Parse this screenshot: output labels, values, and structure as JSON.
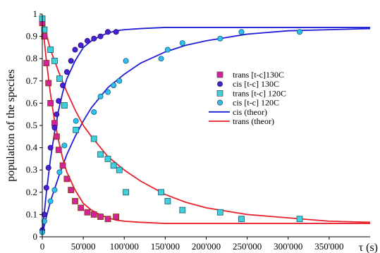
{
  "chart_data": {
    "type": "scatter",
    "title": "",
    "xlabel": "τ (s)",
    "ylabel": "population of the species",
    "xlim": [
      0,
      400000
    ],
    "ylim": [
      0,
      1
    ],
    "x_tick_labels": [
      "0",
      "50'000",
      "100'000",
      "150'000",
      "200'000",
      "250'000",
      "300'000",
      "350'000"
    ],
    "x_tick_values": [
      0,
      50000,
      100000,
      150000,
      200000,
      250000,
      300000,
      350000
    ],
    "y_tick_labels": [
      "0",
      "0.1",
      "0.2",
      "0.3",
      "0.4",
      "0.5",
      "0.6",
      "0.7",
      "0.8",
      "0.9",
      "1"
    ],
    "y_tick_values": [
      0,
      0.1,
      0.2,
      0.3,
      0.4,
      0.5,
      0.6,
      0.7,
      0.8,
      0.9,
      1
    ],
    "grid": false,
    "legend_position": "center-right",
    "series": [
      {
        "name": "trans [t-c]130C",
        "kind": "marker",
        "marker": "square",
        "fill": "#d6229a",
        "stroke": "#7a3a10",
        "x": [
          0,
          2500,
          5000,
          7500,
          10000,
          15000,
          17500,
          20000,
          25000,
          30000,
          35000,
          40000,
          47000,
          55000,
          63000,
          71000,
          80000,
          90000
        ],
        "y": [
          0.96,
          0.9,
          0.78,
          0.69,
          0.6,
          0.51,
          0.45,
          0.39,
          0.32,
          0.26,
          0.21,
          0.16,
          0.13,
          0.11,
          0.1,
          0.09,
          0.08,
          0.09
        ]
      },
      {
        "name": "cis [t-c] 130C",
        "kind": "marker",
        "marker": "circle",
        "fill": "#4b1fd6",
        "stroke": "#1b0a7a",
        "x": [
          0,
          2500,
          5000,
          7500,
          10000,
          15000,
          17500,
          20000,
          25000,
          30000,
          35000,
          40000,
          47000,
          55000,
          63000,
          71000,
          80000,
          90000
        ],
        "y": [
          0.03,
          0.1,
          0.22,
          0.31,
          0.4,
          0.49,
          0.55,
          0.61,
          0.68,
          0.74,
          0.79,
          0.84,
          0.86,
          0.88,
          0.89,
          0.9,
          0.92,
          0.92
        ]
      },
      {
        "name": "trans [t-c] 120C",
        "kind": "marker",
        "marker": "square",
        "fill": "#3fd0dc",
        "stroke": "#1a5a6a",
        "x": [
          0,
          2500,
          10000,
          15000,
          21000,
          27000,
          41000,
          63000,
          71000,
          80000,
          87000,
          94000,
          102000,
          145000,
          153000,
          171000,
          217000,
          243000,
          314000
        ],
        "y": [
          0.98,
          0.93,
          0.84,
          0.79,
          0.71,
          0.59,
          0.48,
          0.44,
          0.37,
          0.35,
          0.32,
          0.3,
          0.2,
          0.2,
          0.16,
          0.12,
          0.11,
          0.08,
          0.08
        ]
      },
      {
        "name": "cis [t-c] 120C",
        "kind": "marker",
        "marker": "circle",
        "fill": "#2fc0f0",
        "stroke": "#10607a",
        "x": [
          0,
          2500,
          10000,
          15000,
          21000,
          27000,
          41000,
          63000,
          71000,
          80000,
          87000,
          94000,
          102000,
          145000,
          153000,
          171000,
          217000,
          243000,
          314000
        ],
        "y": [
          0.02,
          0.07,
          0.16,
          0.21,
          0.29,
          0.41,
          0.52,
          0.56,
          0.63,
          0.65,
          0.68,
          0.7,
          0.79,
          0.8,
          0.84,
          0.87,
          0.89,
          0.92,
          0.92
        ]
      },
      {
        "name": "cis (theor)",
        "kind": "line",
        "color": "#1f1fd6",
        "x": [
          0,
          2500,
          5000,
          10000,
          15000,
          20000,
          25000,
          30000,
          40000,
          50000,
          60000,
          70000,
          80000,
          90000,
          100000,
          120000,
          150000,
          200000,
          300000,
          400000
        ],
        "y": [
          0.02,
          0.11,
          0.2,
          0.35,
          0.47,
          0.57,
          0.65,
          0.71,
          0.79,
          0.85,
          0.88,
          0.9,
          0.915,
          0.925,
          0.93,
          0.935,
          0.94,
          0.94,
          0.94,
          0.94
        ]
      },
      {
        "name": "cis (theor)",
        "kind": "line",
        "color": "#1f1fd6",
        "x": [
          0,
          5000,
          10000,
          20000,
          30000,
          40000,
          50000,
          60000,
          80000,
          100000,
          120000,
          150000,
          175000,
          200000,
          250000,
          300000,
          350000,
          400000
        ],
        "y": [
          0.01,
          0.09,
          0.16,
          0.27,
          0.37,
          0.45,
          0.52,
          0.58,
          0.67,
          0.73,
          0.78,
          0.83,
          0.86,
          0.88,
          0.91,
          0.925,
          0.93,
          0.935
        ]
      },
      {
        "name": "trans (theor)",
        "kind": "line",
        "color": "#e8202a",
        "x": [
          0,
          2500,
          5000,
          10000,
          15000,
          20000,
          25000,
          30000,
          40000,
          50000,
          60000,
          70000,
          80000,
          90000,
          100000,
          120000,
          150000,
          200000,
          300000,
          400000
        ],
        "y": [
          0.98,
          0.88,
          0.79,
          0.64,
          0.52,
          0.43,
          0.35,
          0.29,
          0.21,
          0.15,
          0.12,
          0.1,
          0.085,
          0.075,
          0.07,
          0.065,
          0.06,
          0.06,
          0.06,
          0.06
        ]
      },
      {
        "name": "trans (theor)",
        "kind": "line",
        "color": "#e8202a",
        "x": [
          0,
          5000,
          10000,
          20000,
          30000,
          40000,
          50000,
          60000,
          80000,
          100000,
          120000,
          150000,
          175000,
          200000,
          250000,
          300000,
          350000,
          400000
        ],
        "y": [
          0.99,
          0.91,
          0.84,
          0.74,
          0.65,
          0.57,
          0.5,
          0.45,
          0.36,
          0.3,
          0.25,
          0.19,
          0.155,
          0.13,
          0.1,
          0.085,
          0.07,
          0.065
        ]
      }
    ],
    "legend": [
      {
        "label": "trans [t-c]130C",
        "symbol": "square",
        "color": "#d6229a"
      },
      {
        "label": "cis [t-c] 130C",
        "symbol": "circle",
        "color": "#4b1fd6"
      },
      {
        "label": "trans [t-c] 120C",
        "symbol": "square",
        "color": "#3fd0dc"
      },
      {
        "label": "cis [t-c] 120C",
        "symbol": "circle",
        "color": "#2fc0f0"
      },
      {
        "label": "cis (theor)",
        "symbol": "line",
        "color": "#1f1fd6"
      },
      {
        "label": "trans (theor)",
        "symbol": "line",
        "color": "#e8202a"
      }
    ]
  }
}
